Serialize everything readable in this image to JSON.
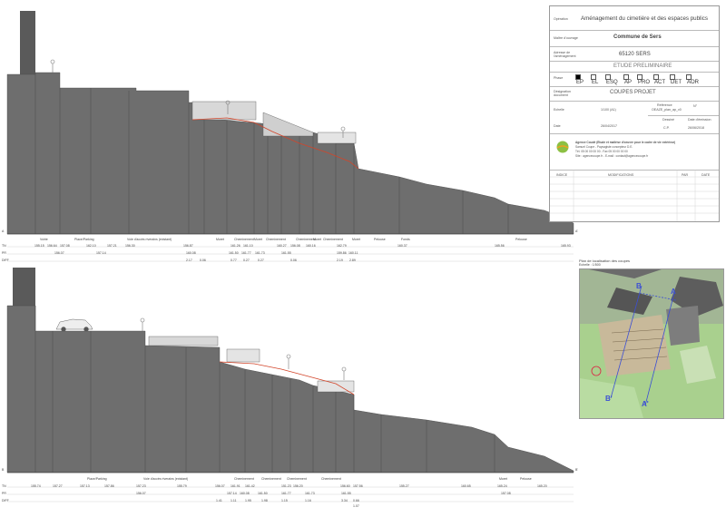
{
  "cartouche": {
    "operation_label": "Opération",
    "operation": "Aménagement du cimetière et des espaces publics",
    "maitre_label": "Maître d'ouvrage",
    "maitre": "Commune de Sers",
    "adresse_label": "Adresse de l'aménagement",
    "adresse": "65120 SERS",
    "etude": "ETUDE PRELIMINAIRE",
    "phase_label": "Phase",
    "phases": [
      {
        "code": "EP",
        "checked": true
      },
      {
        "code": "EL",
        "checked": false
      },
      {
        "code": "ESQ",
        "checked": false
      },
      {
        "code": "AP",
        "checked": false
      },
      {
        "code": "PRO",
        "checked": false
      },
      {
        "code": "ACT",
        "checked": false
      },
      {
        "code": "DET",
        "checked": false
      },
      {
        "code": "AOR",
        "checked": false
      }
    ],
    "designation_label": "Désignation document",
    "designation": "COUPES PROJET",
    "echelle_label": "Echelle",
    "echelle": "1/100 (A1)",
    "reference_label": "Référence",
    "reference": "OEAZE_plan_ap_v0",
    "numero_label": "N°",
    "date_label": "Date",
    "date": "26/04/2017",
    "dessin_label": "Dessiné",
    "dessin": "C.P.",
    "emission_label": "Date d'émission",
    "emission": "26/06/2018",
    "agency_title": "Agence Coudé (Etude et maîtrise d'oeuvre pour le cadre de vie extérieur)",
    "agency_line2": "Samuel Coupe - Paysagiste concepteur D.E.",
    "agency_line3": "Tél. 05 00 00 00 00 - Fax 05 00 00 00 00",
    "agency_line4": "Site : agencecoupe.fr - E-mail : contact@agencecoupe.fr",
    "table_headers": {
      "indice": "INDICE",
      "modifications": "MODIFICATIONS",
      "par": "PAR",
      "date": "DATE"
    }
  },
  "map": {
    "title": "Plan de localisation des coupes",
    "scale": "Echelle : 1/500",
    "labels": {
      "a": "A",
      "b": "B",
      "ap": "A'",
      "bp": "B'"
    }
  },
  "section_top": {
    "point_labels": [
      "Voirie",
      "Place/Parking",
      "Voie d'accès riverains (existant)",
      "Muret",
      "Cheminement",
      "Muret",
      "Cheminement",
      "Cheminement",
      "Muret",
      "Cheminement",
      "Muret",
      "Pelouse",
      "Fonds",
      "Pelouse"
    ],
    "tn": [
      "155.15",
      "156.64",
      "157.08",
      "162.10",
      "157.21",
      "156.30",
      "156.87",
      "161.26",
      "161.10",
      "160.27",
      "156.08",
      "160.16",
      "162.79",
      "160.37",
      "165.56",
      "165.93"
    ],
    "projet": [
      "156.07",
      "157.14",
      "160.08",
      "161.50",
      "161.77",
      "161.73",
      "161.55",
      "159.86",
      "160.11"
    ],
    "diff": [
      "2.17",
      "0.06",
      "0.77",
      "0.27",
      "0.27",
      "0.06",
      "2.19",
      "2.89"
    ],
    "row_labels": [
      "TN",
      "PR",
      "DIFF"
    ],
    "end_labels": [
      "A",
      "A'"
    ]
  },
  "section_bottom": {
    "point_labels": [
      "Place/Parking",
      "Voie d'accès riverains (existant)",
      "Cheminement",
      "Cheminement",
      "Cheminement",
      "Cheminement",
      "Muret",
      "Pelouse"
    ],
    "tn": [
      "155.74",
      "157.27",
      "157.13",
      "157.86",
      "157.23",
      "155.79",
      "156.07",
      "161.91",
      "161.42",
      "151.23",
      "156.20",
      "156.60",
      "157.56",
      "155.27",
      "160.65",
      "165.24",
      "165.20"
    ],
    "projet": [
      "156.07",
      "157.14",
      "160.08",
      "161.50",
      "161.77",
      "161.73",
      "161.55",
      "157.08"
    ],
    "diff": [
      "1.41",
      "1.11",
      "1.95",
      "1.98",
      "1.15",
      "1.16",
      "3.34",
      "0.66",
      "1.07"
    ],
    "row_labels": [
      "TN",
      "PR",
      "DIFF"
    ],
    "end_labels": [
      "B",
      "B'"
    ]
  }
}
